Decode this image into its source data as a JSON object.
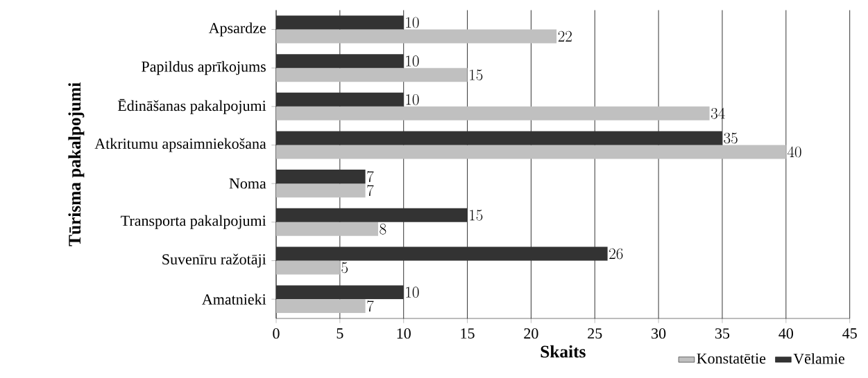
{
  "chart_data": {
    "type": "bar",
    "orientation": "horizontal",
    "categories": [
      "Apsardze",
      "Papildus aprīkojums",
      "Ēdināšanas pakalpojumi",
      "Atkritumu apsaimniekošana",
      "Noma",
      "Transporta pakalpojumi",
      "Suvenīru ražotāji",
      "Amatnieki"
    ],
    "series": [
      {
        "name": "Konstatētie",
        "color": "#c0c0c0",
        "values": [
          22,
          15,
          34,
          40,
          7,
          8,
          5,
          7
        ]
      },
      {
        "name": "Vēlamie",
        "color": "#333333",
        "values": [
          10,
          10,
          10,
          35,
          7,
          15,
          26,
          10
        ]
      }
    ],
    "xlim": [
      0,
      45
    ],
    "xticks": [
      0,
      5,
      10,
      15,
      20,
      25,
      30,
      35,
      40,
      45
    ],
    "xlabel": "Skaits",
    "ylabel": "Tūrisma pakalpojumi",
    "grid": "x",
    "legend": "bottom right",
    "data_labels": true
  }
}
